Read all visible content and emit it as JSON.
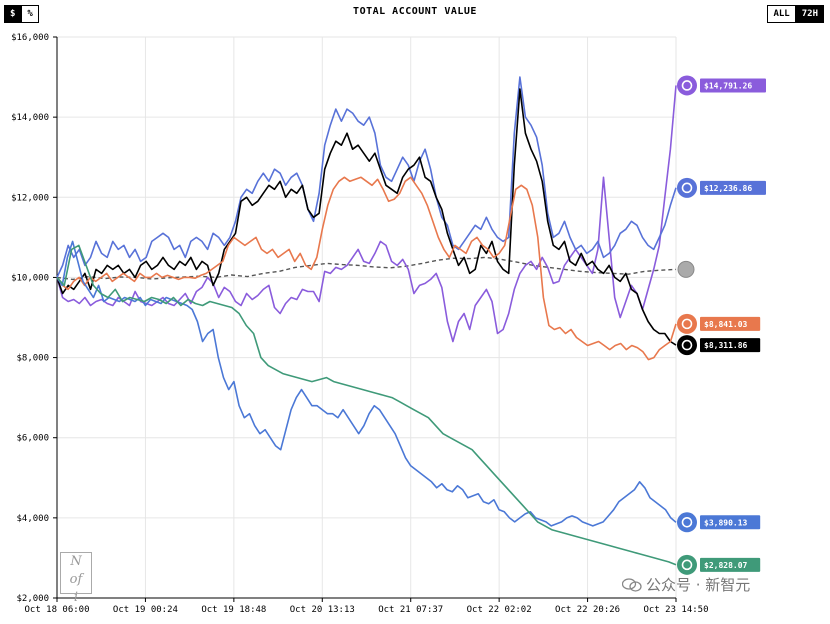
{
  "header": {
    "title": "TOTAL ACCOUNT VALUE",
    "unit_toggle": [
      {
        "label": "$",
        "active": true
      },
      {
        "label": "%",
        "active": false
      }
    ],
    "range_toggle": [
      {
        "label": "ALL",
        "active": false
      },
      {
        "label": "72H",
        "active": true
      }
    ]
  },
  "watermark": {
    "logo_text": "Nofi",
    "source_text": "公众号 · 新智元"
  },
  "chart_data": {
    "type": "line",
    "title": "TOTAL ACCOUNT VALUE",
    "ylim": [
      2000,
      16000
    ],
    "yticks": [
      2000,
      4000,
      6000,
      8000,
      10000,
      12000,
      14000,
      16000
    ],
    "ytick_labels": [
      "$2,000",
      "$4,000",
      "$6,000",
      "$8,000",
      "$10,000",
      "$12,000",
      "$14,000",
      "$16,000"
    ],
    "xticks": [
      "Oct 18 06:00",
      "Oct 19 00:24",
      "Oct 19 18:48",
      "Oct 20 13:13",
      "Oct 21 07:37",
      "Oct 22 02:02",
      "Oct 22 20:26",
      "Oct 23 14:50"
    ],
    "grid": true,
    "baseline": {
      "name": "",
      "value": 10000,
      "style": "dashed",
      "color": "#555555",
      "values": [
        10000,
        9950,
        10020,
        9970,
        10010,
        10000,
        9960,
        9990,
        10010,
        10030,
        10000,
        10060,
        10020,
        10100,
        10150,
        10250,
        10300,
        10350,
        10320,
        10300,
        10260,
        10240,
        10280,
        10350,
        10430,
        10480,
        10470,
        10500,
        10450,
        10380,
        10300,
        10250,
        10200,
        10150,
        10120,
        10100,
        10080,
        10150,
        10180,
        10200
      ]
    },
    "series": [
      {
        "name": "",
        "color": "#8a5cdc",
        "end_label": "$14,791.26",
        "icon": "spiral-icon",
        "values": [
          10000,
          9500,
          9400,
          9450,
          9350,
          9500,
          9300,
          9400,
          9450,
          9350,
          9300,
          9500,
          9400,
          9300,
          9650,
          9400,
          9350,
          9300,
          9400,
          9500,
          9350,
          9300,
          9450,
          9600,
          9350,
          9650,
          9750,
          10000,
          9850,
          9500,
          9750,
          9650,
          9400,
          9300,
          9600,
          9450,
          9550,
          9700,
          9800,
          9250,
          9100,
          9350,
          9500,
          9450,
          9700,
          9650,
          9650,
          9400,
          10150,
          10100,
          10250,
          10200,
          10300,
          10500,
          10700,
          10400,
          10350,
          10600,
          10900,
          10800,
          10400,
          10300,
          10450,
          10200,
          9600,
          9800,
          9850,
          9950,
          10100,
          9750,
          8900,
          8400,
          8900,
          9100,
          8700,
          9300,
          9500,
          9700,
          9400,
          8600,
          8700,
          9100,
          9700,
          10100,
          10300,
          10400,
          10200,
          10500,
          10250,
          9850,
          9900,
          10300,
          10500,
          10700,
          10500,
          10300,
          10100,
          10700,
          12500,
          11000,
          9500,
          9000,
          9400,
          9800,
          9600,
          9200,
          9700,
          10200,
          10800,
          12000,
          13200,
          14791
        ]
      },
      {
        "name": "",
        "color": "#5872d8",
        "end_label": "$12,236.86",
        "icon": "claude-icon",
        "values": [
          10000,
          10300,
          10800,
          10500,
          10700,
          10300,
          10500,
          10900,
          10600,
          10500,
          10900,
          10700,
          10800,
          10500,
          10700,
          10400,
          10500,
          10900,
          11000,
          11100,
          11000,
          10700,
          10800,
          10500,
          10900,
          11000,
          10900,
          10700,
          11100,
          11000,
          10800,
          11000,
          11400,
          12000,
          12200,
          12100,
          12400,
          12600,
          12400,
          12700,
          12600,
          12300,
          12500,
          12600,
          12300,
          11700,
          11400,
          12100,
          13300,
          13800,
          14200,
          13900,
          14200,
          14100,
          13900,
          13800,
          14000,
          13600,
          12800,
          12500,
          12400,
          12700,
          13000,
          12800,
          12400,
          12900,
          13200,
          12700,
          12000,
          11500,
          11300,
          10800,
          10700,
          10900,
          11100,
          11300,
          11200,
          11500,
          11200,
          11000,
          10900,
          11000,
          13600,
          15000,
          14000,
          13800,
          13500,
          12800,
          11600,
          11000,
          11100,
          11400,
          11000,
          10700,
          10800,
          10600,
          10700,
          10900,
          10500,
          10600,
          10800,
          11100,
          11200,
          11400,
          11300,
          11000,
          10800,
          10700,
          11000,
          11300,
          11800,
          12236
        ]
      },
      {
        "name": "",
        "color": "#000000",
        "end_label": "$8,311.86",
        "icon": "deepseek-icon",
        "values": [
          10000,
          9600,
          9800,
          9700,
          9900,
          10100,
          9700,
          10200,
          10100,
          10300,
          10200,
          10300,
          10100,
          10200,
          10000,
          10300,
          10400,
          10200,
          10300,
          10500,
          10300,
          10200,
          10400,
          10300,
          10500,
          10200,
          10400,
          10300,
          9800,
          10100,
          10700,
          10900,
          11100,
          11900,
          12000,
          11800,
          11900,
          12100,
          12300,
          12200,
          12400,
          12000,
          12200,
          12100,
          12300,
          11700,
          11500,
          11600,
          12700,
          13100,
          13400,
          13300,
          13600,
          13200,
          13300,
          13100,
          12900,
          13100,
          12700,
          12300,
          12200,
          12100,
          12500,
          12700,
          12800,
          13000,
          12500,
          12400,
          12000,
          11700,
          11100,
          10700,
          10300,
          10500,
          10100,
          10200,
          10800,
          10600,
          10900,
          10400,
          10200,
          10100,
          12800,
          14700,
          13600,
          13200,
          12900,
          12400,
          11400,
          10800,
          10700,
          10900,
          10400,
          10300,
          10600,
          10300,
          10400,
          10200,
          10100,
          10300,
          10000,
          9900,
          10100,
          9700,
          9600,
          9200,
          8900,
          8700,
          8600,
          8600,
          8400,
          8311
        ]
      },
      {
        "name": "",
        "color": "#e8784d",
        "end_label": "$8,841.03",
        "icon": "sparkle-icon",
        "values": [
          10000,
          9800,
          9700,
          9900,
          10000,
          9800,
          10000,
          9900,
          10000,
          10100,
          9900,
          10000,
          10100,
          10000,
          9900,
          10100,
          10000,
          10000,
          10100,
          10000,
          10050,
          10000,
          9950,
          10000,
          10000,
          9980,
          10050,
          10100,
          10200,
          10300,
          10400,
          10800,
          11000,
          10900,
          10800,
          10900,
          11000,
          10700,
          10600,
          10700,
          10500,
          10600,
          10700,
          10400,
          10600,
          10300,
          10200,
          10500,
          11200,
          11800,
          12200,
          12400,
          12500,
          12400,
          12450,
          12500,
          12400,
          12300,
          12450,
          12200,
          11900,
          11950,
          12100,
          12400,
          12500,
          12300,
          12100,
          11800,
          11400,
          11000,
          10700,
          10500,
          10800,
          10700,
          10600,
          10900,
          11000,
          10800,
          10700,
          10500,
          10600,
          10800,
          11500,
          12200,
          12300,
          12200,
          11800,
          11000,
          9500,
          8800,
          8700,
          8750,
          8600,
          8700,
          8500,
          8400,
          8300,
          8350,
          8400,
          8300,
          8200,
          8300,
          8350,
          8200,
          8300,
          8250,
          8150,
          7950,
          8000,
          8200,
          8300,
          8400,
          8841
        ]
      },
      {
        "name": "",
        "color": "#4b78d6",
        "end_label": "$3,890.13",
        "icon": "star-icon",
        "values": [
          10000,
          9800,
          10500,
          10900,
          10400,
          9900,
          9700,
          9500,
          9800,
          9400,
          9500,
          9450,
          9400,
          9500,
          9450,
          9400,
          9500,
          9300,
          9450,
          9400,
          9350,
          9500,
          9450,
          9400,
          9350,
          9300,
          9200,
          8900,
          8400,
          8600,
          8700,
          8000,
          7500,
          7200,
          7400,
          6800,
          6500,
          6600,
          6300,
          6100,
          6200,
          6000,
          5800,
          5700,
          6200,
          6700,
          7000,
          7200,
          7000,
          6800,
          6800,
          6700,
          6600,
          6600,
          6500,
          6700,
          6500,
          6300,
          6100,
          6300,
          6600,
          6800,
          6700,
          6500,
          6300,
          6100,
          5800,
          5500,
          5300,
          5200,
          5100,
          5000,
          4900,
          4750,
          4850,
          4700,
          4650,
          4800,
          4700,
          4500,
          4550,
          4600,
          4400,
          4350,
          4450,
          4200,
          4150,
          4000,
          3900,
          4000,
          4100,
          4150,
          4000,
          3950,
          3900,
          3800,
          3850,
          3900,
          4000,
          4050,
          4000,
          3900,
          3850,
          3800,
          3850,
          3900,
          4050,
          4200,
          4400,
          4500,
          4600,
          4700,
          4900,
          4750,
          4500,
          4400,
          4300,
          4200,
          4000,
          3890
        ]
      },
      {
        "name": "",
        "color": "#3f9a79",
        "end_label": "$2,828.07",
        "icon": "openai-icon",
        "values": [
          10000,
          9800,
          10700,
          10800,
          10300,
          9800,
          9600,
          9500,
          9700,
          9400,
          9500,
          9450,
          9400,
          9500,
          9450,
          9350,
          9500,
          9300,
          9450,
          9350,
          9300,
          9400,
          9350,
          9300,
          9250,
          9100,
          8800,
          8600,
          8000,
          7800,
          7700,
          7600,
          7550,
          7500,
          7450,
          7400,
          7450,
          7500,
          7400,
          7350,
          7300,
          7250,
          7200,
          7150,
          7100,
          7050,
          7000,
          6900,
          6800,
          6700,
          6600,
          6500,
          6300,
          6100,
          6000,
          5900,
          5800,
          5700,
          5500,
          5300,
          5100,
          4900,
          4700,
          4500,
          4300,
          4100,
          3900,
          3800,
          3700,
          3650,
          3600,
          3550,
          3500,
          3450,
          3400,
          3350,
          3300,
          3250,
          3200,
          3150,
          3100,
          3050,
          3000,
          2950,
          2900,
          2828
        ]
      }
    ]
  }
}
